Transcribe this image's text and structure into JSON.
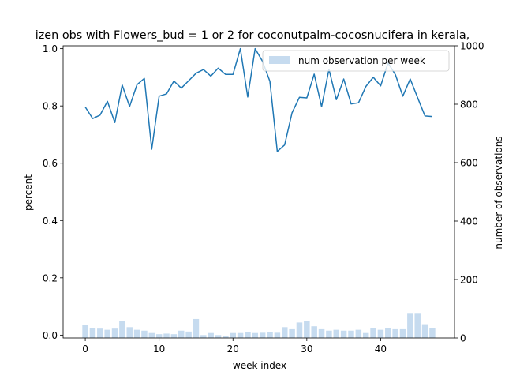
{
  "chart_data": {
    "type": "bar+line",
    "title": "izen obs with Flowers_bud = 1 or 2 for coconutpalm-cocosnucifera in kerala,",
    "xlabel": "week index",
    "ylabel_left": "percent",
    "ylabel_right": "number of observations",
    "xlim": [
      -3,
      50
    ],
    "ylim_left": [
      -0.01,
      1.01
    ],
    "ylim_right": [
      0,
      1000
    ],
    "xticks": [
      0,
      10,
      20,
      30,
      40
    ],
    "yticks_left": [
      0.0,
      0.2,
      0.4,
      0.6,
      0.8,
      1.0
    ],
    "yticks_right": [
      0,
      200,
      400,
      600,
      800,
      1000
    ],
    "legend": {
      "placement": "top-right",
      "entries": [
        "num observation per week"
      ]
    },
    "grid": false,
    "colors": {
      "line": "#1f77b4",
      "bars": "#c6dbef",
      "axes": "#000000"
    },
    "weeks": [
      0,
      1,
      2,
      3,
      4,
      5,
      6,
      7,
      8,
      9,
      10,
      11,
      12,
      13,
      14,
      15,
      16,
      17,
      18,
      19,
      20,
      21,
      22,
      23,
      24,
      25,
      26,
      27,
      28,
      29,
      30,
      31,
      32,
      33,
      34,
      35,
      36,
      37,
      38,
      39,
      40,
      41,
      42,
      43,
      44,
      45,
      46,
      47
    ],
    "observations": [
      45,
      35,
      32,
      28,
      32,
      58,
      37,
      28,
      25,
      17,
      13,
      15,
      13,
      25,
      22,
      65,
      10,
      17,
      10,
      8,
      17,
      17,
      20,
      17,
      18,
      20,
      18,
      37,
      30,
      53,
      57,
      40,
      30,
      25,
      28,
      25,
      25,
      28,
      17,
      35,
      28,
      33,
      30,
      30,
      83,
      83,
      47,
      33
    ],
    "percent": [
      0.796,
      0.756,
      0.768,
      0.816,
      0.742,
      0.873,
      0.798,
      0.874,
      0.896,
      0.649,
      0.834,
      0.842,
      0.887,
      0.862,
      0.888,
      0.914,
      0.927,
      0.904,
      0.932,
      0.91,
      0.91,
      1.0,
      0.831,
      1.0,
      0.956,
      0.886,
      0.641,
      0.664,
      0.776,
      0.83,
      0.828,
      0.911,
      0.797,
      0.928,
      0.822,
      0.894,
      0.807,
      0.811,
      0.868,
      0.9,
      0.87,
      0.95,
      0.909,
      0.834,
      0.894,
      0.829,
      0.765,
      0.763
    ]
  }
}
